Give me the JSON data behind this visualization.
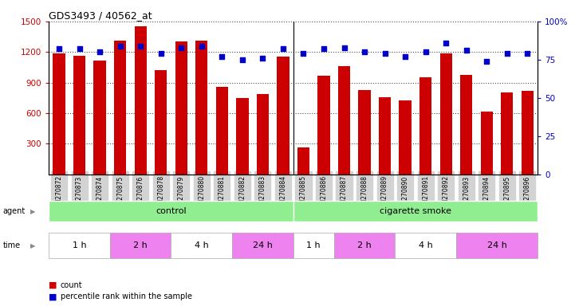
{
  "title": "GDS3493 / 40562_at",
  "samples": [
    "GSM270872",
    "GSM270873",
    "GSM270874",
    "GSM270875",
    "GSM270876",
    "GSM270878",
    "GSM270879",
    "GSM270880",
    "GSM270881",
    "GSM270882",
    "GSM270883",
    "GSM270884",
    "GSM270885",
    "GSM270886",
    "GSM270887",
    "GSM270888",
    "GSM270889",
    "GSM270890",
    "GSM270891",
    "GSM270892",
    "GSM270893",
    "GSM270894",
    "GSM270895",
    "GSM270896"
  ],
  "counts": [
    1190,
    1165,
    1120,
    1310,
    1450,
    1020,
    1300,
    1310,
    860,
    750,
    790,
    1155,
    265,
    965,
    1060,
    830,
    760,
    725,
    950,
    1190,
    975,
    615,
    800,
    820
  ],
  "percentile_ranks": [
    82,
    82,
    80,
    84,
    84,
    79,
    83,
    84,
    77,
    75,
    76,
    82,
    79,
    82,
    83,
    80,
    79,
    77,
    80,
    86,
    81,
    74,
    79,
    79
  ],
  "bar_color": "#cc0000",
  "dot_color": "#0000cc",
  "ylim_left": [
    0,
    1500
  ],
  "ylim_right": [
    0,
    100
  ],
  "yticks_left": [
    300,
    600,
    900,
    1200,
    1500
  ],
  "yticks_right": [
    0,
    25,
    50,
    75,
    100
  ],
  "n_control": 12,
  "n_total": 24,
  "agent_label_control": "control",
  "agent_label_smoke": "cigarette smoke",
  "agent_color": "#90ee90",
  "time_groups": [
    {
      "label": "1 h",
      "start": 0,
      "end": 3,
      "pink": false
    },
    {
      "label": "2 h",
      "start": 3,
      "end": 6,
      "pink": true
    },
    {
      "label": "4 h",
      "start": 6,
      "end": 9,
      "pink": false
    },
    {
      "label": "24 h",
      "start": 9,
      "end": 12,
      "pink": true
    },
    {
      "label": "1 h",
      "start": 12,
      "end": 14,
      "pink": false
    },
    {
      "label": "2 h",
      "start": 14,
      "end": 17,
      "pink": true
    },
    {
      "label": "4 h",
      "start": 17,
      "end": 20,
      "pink": false
    },
    {
      "label": "24 h",
      "start": 20,
      "end": 24,
      "pink": true
    }
  ],
  "time_color_white": "#ffffff",
  "time_color_pink": "#ee82ee",
  "tick_bg": "#d3d3d3",
  "legend_count_label": "count",
  "legend_pct_label": "percentile rank within the sample"
}
